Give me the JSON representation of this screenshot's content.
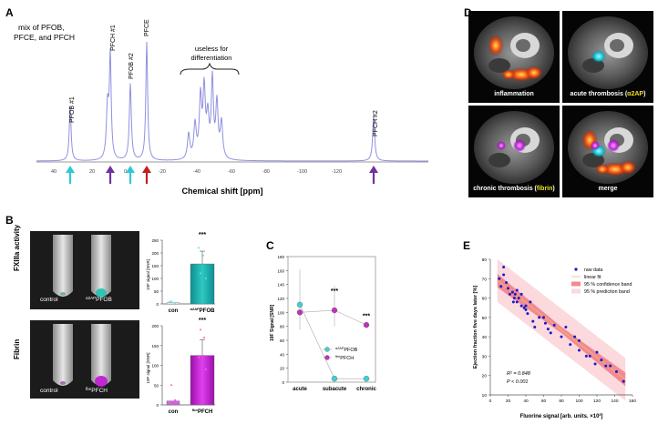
{
  "panels": {
    "a": {
      "letter": "A",
      "title_lines": [
        "mix of PFOB,",
        "PFCE, and PFCH"
      ],
      "xlabel": "Chemical shift [ppm]",
      "ticks": [
        "40",
        "20",
        "0",
        "-20",
        "-40",
        "-60",
        "-80",
        "-100",
        "-120"
      ],
      "peaks": [
        "PFOB #1",
        "PFCH #1",
        "PFOB #2",
        "PFCE",
        "PFCH #2"
      ],
      "note_lines": [
        "useless for",
        "differentiation"
      ],
      "colors": {
        "spectrum": "#9090e0",
        "pfob": "#30c8d8",
        "pfch": "#7030a0",
        "pfce": "#c02020"
      }
    },
    "b": {
      "letter": "B",
      "row1_label": "FXIIIa activity",
      "row2_label": "Fibrin",
      "row1_control": "control",
      "row1_probe_sup": "α2AP",
      "row1_probe": "PFOB",
      "row2_control": "control",
      "row2_probe_sup": "fbn",
      "row2_probe": "PFCH",
      "ylabel": "19F signal [SNR]",
      "sig": "***",
      "chart_data": [
        {
          "type": "bar",
          "categories": [
            "con",
            "α2APPFOB"
          ],
          "values": [
            5,
            157
          ],
          "ylim": [
            0,
            250
          ],
          "yticks": [
            "0",
            "50",
            "100",
            "150",
            "200",
            "250"
          ],
          "ylabel": "19F signal [SNR]"
        },
        {
          "type": "bar",
          "categories": [
            "con",
            "fbnPFCH"
          ],
          "values": [
            10,
            125
          ],
          "ylim": [
            0,
            200
          ],
          "yticks": [
            "0",
            "50",
            "100",
            "150",
            "200"
          ],
          "ylabel": "19F signal [SNR]"
        }
      ]
    },
    "c": {
      "letter": "C",
      "ylabel": "19F Signal [SNR]",
      "chart_data": {
        "type": "line",
        "categories": [
          "acute",
          "subacute",
          "chronic"
        ],
        "series": [
          {
            "name": "α2APPFOB",
            "sup": "α2AP",
            "base": "PFOB",
            "values": [
              111,
              5,
              5
            ],
            "color": "#40d0d0"
          },
          {
            "name": "fbnPFCH",
            "sup": "fbn",
            "base": "PFCH",
            "values": [
              100,
              103,
              82
            ],
            "color": "#c030c0"
          }
        ],
        "ylim": [
          0,
          180
        ],
        "yticks": [
          "0",
          "20",
          "40",
          "60",
          "80",
          "100",
          "120",
          "140",
          "160",
          "180"
        ],
        "annotations": [
          "***",
          "***"
        ]
      }
    },
    "d": {
      "letter": "D",
      "tiles": [
        {
          "label": "inflammation"
        },
        {
          "label": "acute thrombosis (",
          "hl": "α2AP",
          "end": ")"
        },
        {
          "label": "chronic thrombosis (",
          "hl": "fibrin",
          "end": ")"
        },
        {
          "label": "merge"
        }
      ],
      "highlight_color": "#f0e020"
    },
    "e": {
      "letter": "E",
      "xlabel": "Fluorine signal [arb. units. ×10³]",
      "ylabel": "Ejection fraction five days later [%]",
      "legend": [
        "raw data",
        "linear fit",
        "95 % confidence band",
        "95 % prediction band"
      ],
      "stats_r2": "R² = 0.848",
      "stats_p": "P  <  0.001",
      "chart_data": {
        "type": "scatter",
        "xlim": [
          0,
          160
        ],
        "ylim": [
          10,
          80
        ],
        "xticks": [
          "0",
          "20",
          "40",
          "60",
          "80",
          "100",
          "120",
          "140",
          "160"
        ],
        "yticks": [
          "10",
          "20",
          "30",
          "40",
          "50",
          "60",
          "70",
          "80"
        ],
        "x": [
          10,
          12,
          15,
          15,
          18,
          20,
          22,
          25,
          26,
          27,
          28,
          30,
          30,
          32,
          35,
          35,
          38,
          40,
          40,
          42,
          45,
          48,
          50,
          55,
          60,
          62,
          65,
          68,
          72,
          80,
          85,
          90,
          95,
          100,
          100,
          108,
          112,
          118,
          120,
          125,
          130,
          135,
          142,
          150
        ],
        "y": [
          70,
          66,
          72,
          76,
          68,
          65,
          62,
          63,
          58,
          60,
          62,
          64,
          58,
          60,
          56,
          62,
          55,
          54,
          56,
          52,
          58,
          48,
          45,
          50,
          50,
          47,
          44,
          42,
          46,
          40,
          45,
          36,
          40,
          33,
          38,
          30,
          30,
          26,
          32,
          28,
          25,
          25,
          22,
          17
        ],
        "fit": {
          "x0": 8,
          "y0": 69,
          "x1": 152,
          "y1": 18
        }
      }
    }
  }
}
